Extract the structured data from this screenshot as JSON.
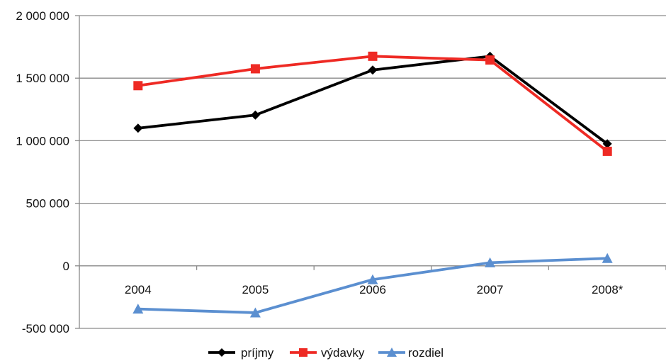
{
  "chart_data": {
    "type": "line",
    "title": "",
    "xlabel": "",
    "ylabel": "",
    "categories": [
      "2004",
      "2005",
      "2006",
      "2007",
      "2008*"
    ],
    "ylim": [
      -500000,
      2000000
    ],
    "y_ticks": [
      {
        "value": 2000000,
        "label": "2 000 000"
      },
      {
        "value": 1500000,
        "label": "1 500 000"
      },
      {
        "value": 1000000,
        "label": "1 000 000"
      },
      {
        "value": 500000,
        "label": "500 000"
      },
      {
        "value": 0,
        "label": "0"
      },
      {
        "value": -500000,
        "label": "-500 000"
      }
    ],
    "grid": "horizontal",
    "legend_position": "bottom-center",
    "series": [
      {
        "name": "príjmy",
        "color": "#000000",
        "marker": "diamond",
        "values": [
          1100000,
          1205000,
          1565000,
          1675000,
          975000
        ]
      },
      {
        "name": "výdavky",
        "color": "#ee2a24",
        "marker": "square",
        "values": [
          1440000,
          1575000,
          1675000,
          1645000,
          915000
        ]
      },
      {
        "name": "rozdiel",
        "color": "#5b8fd0",
        "marker": "triangle",
        "values": [
          -345000,
          -375000,
          -110000,
          25000,
          60000
        ]
      }
    ]
  }
}
